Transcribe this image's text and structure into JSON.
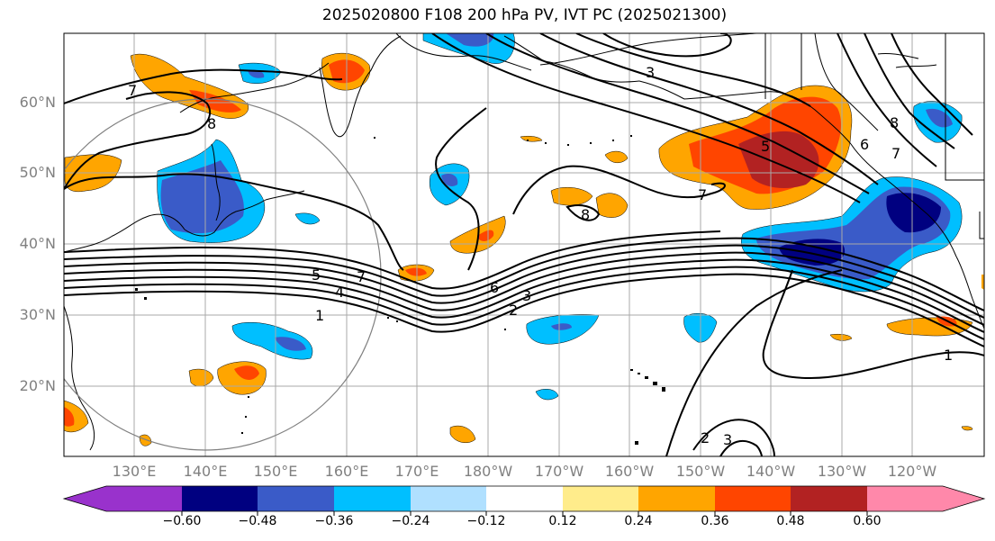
{
  "title": "2025020800 F108 200 hPa PV, IVT PC (2025021300)",
  "lat_labels": [
    "60°N",
    "50°N",
    "40°N",
    "30°N",
    "20°N"
  ],
  "lon_labels": [
    "130°E",
    "140°E",
    "150°E",
    "160°E",
    "170°E",
    "180°W",
    "170°W",
    "160°W",
    "150°W",
    "140°W",
    "130°W",
    "120°W"
  ],
  "contour_labels": [
    "7",
    "8",
    "3",
    "5",
    "7",
    "8",
    "6",
    "7",
    "8",
    "5",
    "4",
    "7",
    "1",
    "6",
    "2",
    "3",
    "1",
    "2",
    "3"
  ],
  "colorbar": {
    "colors": [
      "#9932cc",
      "#000080",
      "#3a5bc8",
      "#00bfff",
      "#b0e0ff",
      "#ffffff",
      "#ffec8b",
      "#ffa500",
      "#ff4500",
      "#b22222",
      "#ff88aa"
    ],
    "tick_labels": [
      "−0.60",
      "−0.48",
      "−0.36",
      "−0.24",
      "−0.12",
      "0.12",
      "0.24",
      "0.36",
      "0.48",
      "0.60"
    ]
  },
  "colors": {
    "grid": "#a9a9a9",
    "contour": "#000000",
    "circle": "#808080",
    "axis_label": "#808080"
  }
}
